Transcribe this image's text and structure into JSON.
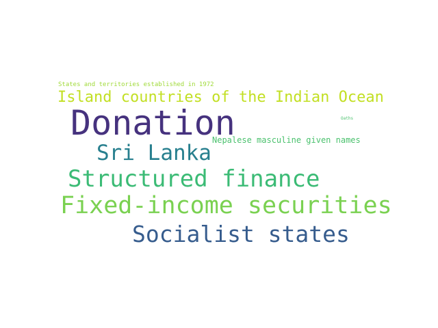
{
  "words": [
    {
      "text": "States and territories established in 1972",
      "color": "#a0da39"
    },
    {
      "text": "Island countries of the Indian Ocean",
      "color": "#c2df23"
    },
    {
      "text": "Donation",
      "color": "#46327e"
    },
    {
      "text": "Oaths",
      "color": "#4ac16d"
    },
    {
      "text": "Nepalese masculine given names",
      "color": "#4ac16d"
    },
    {
      "text": "Sri Lanka",
      "color": "#277f8e"
    },
    {
      "text": "Structured finance",
      "color": "#3bbb75"
    },
    {
      "text": "Fixed-income securities",
      "color": "#7ad151"
    },
    {
      "text": "Socialist states",
      "color": "#365c8d"
    }
  ]
}
